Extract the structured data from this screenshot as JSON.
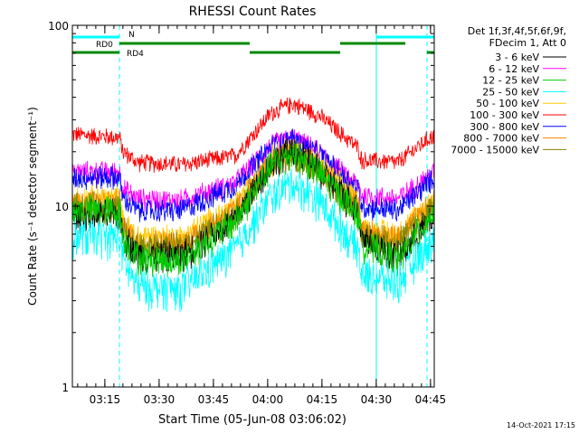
{
  "chart_data": {
    "type": "line",
    "title": "RHESSI Count Rates",
    "xlabel": "Start Time (05-Jun-08 03:06:02)",
    "ylabel": "Count Rate (s⁻¹ detector segment⁻¹)",
    "y_scale": "log",
    "ylim": [
      1,
      100
    ],
    "xlim": [
      "03:06:02",
      "04:46:02"
    ],
    "x_tick_labels": [
      "03:15",
      "03:30",
      "03:45",
      "04:00",
      "04:15",
      "04:30",
      "04:45"
    ],
    "y_tick_labels": [
      "1",
      "10",
      "100"
    ],
    "legend_title": [
      "Det 1f,3f,4f,5f,6f,9f,",
      "FDecim 1, Att 0"
    ],
    "series": [
      {
        "name": "3 - 6 keV",
        "color": "#000000",
        "anchor": [
          [
            0,
            9.0
          ],
          [
            13,
            9.0
          ],
          [
            14,
            7.0
          ],
          [
            18,
            5.4
          ],
          [
            30,
            5.3
          ],
          [
            45,
            8.5
          ],
          [
            55,
            17.5
          ],
          [
            61,
            20.5
          ],
          [
            68,
            16
          ],
          [
            79,
            9.5
          ],
          [
            80,
            6.8
          ],
          [
            90,
            5.2
          ],
          [
            100,
            9.0
          ]
        ]
      },
      {
        "name": "6 - 12 keV",
        "color": "#ff00ff",
        "anchor": [
          [
            0,
            15.5
          ],
          [
            13,
            15.5
          ],
          [
            14,
            12.5
          ],
          [
            18,
            11.0
          ],
          [
            30,
            10.8
          ],
          [
            45,
            13.5
          ],
          [
            55,
            22
          ],
          [
            61,
            24
          ],
          [
            68,
            20
          ],
          [
            79,
            13
          ],
          [
            80,
            11.5
          ],
          [
            90,
            11.0
          ],
          [
            100,
            15.5
          ]
        ]
      },
      {
        "name": "12 - 25 keV",
        "color": "#00cc00",
        "anchor": [
          [
            0,
            9.5
          ],
          [
            13,
            9.5
          ],
          [
            14,
            6.8
          ],
          [
            18,
            5.2
          ],
          [
            30,
            5.0
          ],
          [
            45,
            8.3
          ],
          [
            55,
            17
          ],
          [
            61,
            20
          ],
          [
            68,
            15.5
          ],
          [
            79,
            9.0
          ],
          [
            80,
            6.3
          ],
          [
            90,
            5.0
          ],
          [
            100,
            9.5
          ]
        ]
      },
      {
        "name": "25 - 50 keV",
        "color": "#00ffff",
        "anchor": [
          [
            0,
            6.8
          ],
          [
            13,
            6.8
          ],
          [
            14,
            5.0
          ],
          [
            18,
            3.6
          ],
          [
            30,
            3.5
          ],
          [
            45,
            5.8
          ],
          [
            55,
            11.5
          ],
          [
            61,
            13.5
          ],
          [
            68,
            11.0
          ],
          [
            79,
            5.8
          ],
          [
            80,
            4.2
          ],
          [
            90,
            3.8
          ],
          [
            100,
            6.8
          ]
        ]
      },
      {
        "name": "50 - 100 keV",
        "color": "#ffcc00",
        "anchor": [
          [
            0,
            11.0
          ],
          [
            13,
            11.0
          ],
          [
            14,
            8.0
          ],
          [
            18,
            6.8
          ],
          [
            30,
            6.7
          ],
          [
            45,
            10
          ],
          [
            55,
            18.5
          ],
          [
            61,
            21
          ],
          [
            68,
            17
          ],
          [
            79,
            10.5
          ],
          [
            80,
            7.5
          ],
          [
            90,
            7.0
          ],
          [
            100,
            11.0
          ]
        ]
      },
      {
        "name": "100 - 300 keV",
        "color": "#ff0000",
        "anchor": [
          [
            0,
            25
          ],
          [
            13,
            24
          ],
          [
            14,
            20
          ],
          [
            18,
            17.5
          ],
          [
            30,
            17
          ],
          [
            45,
            19
          ],
          [
            55,
            33
          ],
          [
            61,
            37
          ],
          [
            68,
            32
          ],
          [
            79,
            21
          ],
          [
            80,
            18
          ],
          [
            90,
            17.5
          ],
          [
            100,
            25
          ]
        ]
      },
      {
        "name": "300 - 800 keV",
        "color": "#0000ff",
        "anchor": [
          [
            0,
            14.5
          ],
          [
            13,
            14.5
          ],
          [
            14,
            11.0
          ],
          [
            18,
            9.5
          ],
          [
            30,
            9.5
          ],
          [
            45,
            13
          ],
          [
            55,
            21.5
          ],
          [
            61,
            23.5
          ],
          [
            68,
            19.5
          ],
          [
            79,
            12.5
          ],
          [
            80,
            10
          ],
          [
            90,
            9.5
          ],
          [
            100,
            14.5
          ]
        ]
      },
      {
        "name": "800 - 7000 keV",
        "color": "#ff8800",
        "anchor": [
          [
            0,
            10.5
          ],
          [
            13,
            10.5
          ],
          [
            14,
            7.8
          ],
          [
            18,
            6.3
          ],
          [
            30,
            6.2
          ],
          [
            45,
            9.5
          ],
          [
            55,
            17.5
          ],
          [
            61,
            20
          ],
          [
            68,
            16
          ],
          [
            79,
            10
          ],
          [
            80,
            7.2
          ],
          [
            90,
            6.6
          ],
          [
            100,
            10.5
          ]
        ]
      },
      {
        "name": "7000 - 15000 keV",
        "color": "#888800",
        "anchor": [
          [
            0,
            10.0
          ],
          [
            13,
            10.0
          ],
          [
            14,
            7.5
          ],
          [
            18,
            6.0
          ],
          [
            30,
            5.9
          ],
          [
            45,
            9.0
          ],
          [
            55,
            17
          ],
          [
            61,
            19.5
          ],
          [
            68,
            15.5
          ],
          [
            79,
            9.5
          ],
          [
            80,
            6.9
          ],
          [
            90,
            6.3
          ],
          [
            100,
            10.0
          ]
        ]
      }
    ],
    "attenuator_flags": [
      {
        "label": "N",
        "color": "#00ffff",
        "segments": [
          [
            0,
            13
          ],
          [
            84,
            100
          ]
        ],
        "level": "top"
      },
      {
        "label": "RD0",
        "color": "#008800",
        "segments": [
          [
            13,
            49
          ],
          [
            74,
            92
          ]
        ],
        "level": "middle"
      },
      {
        "label": "RD4",
        "color": "#008800",
        "segments": [
          [
            0,
            13
          ],
          [
            49,
            74
          ],
          [
            98,
            100
          ]
        ],
        "level": "bottom"
      }
    ],
    "markers": {
      "solid_cyan_minutes": [
        0,
        84
      ],
      "dashed_cyan_minutes": [
        13,
        98
      ]
    },
    "grid": false,
    "legend_position": "right"
  },
  "footer": {
    "timestamp": "14-Oct-2021 17:15"
  }
}
